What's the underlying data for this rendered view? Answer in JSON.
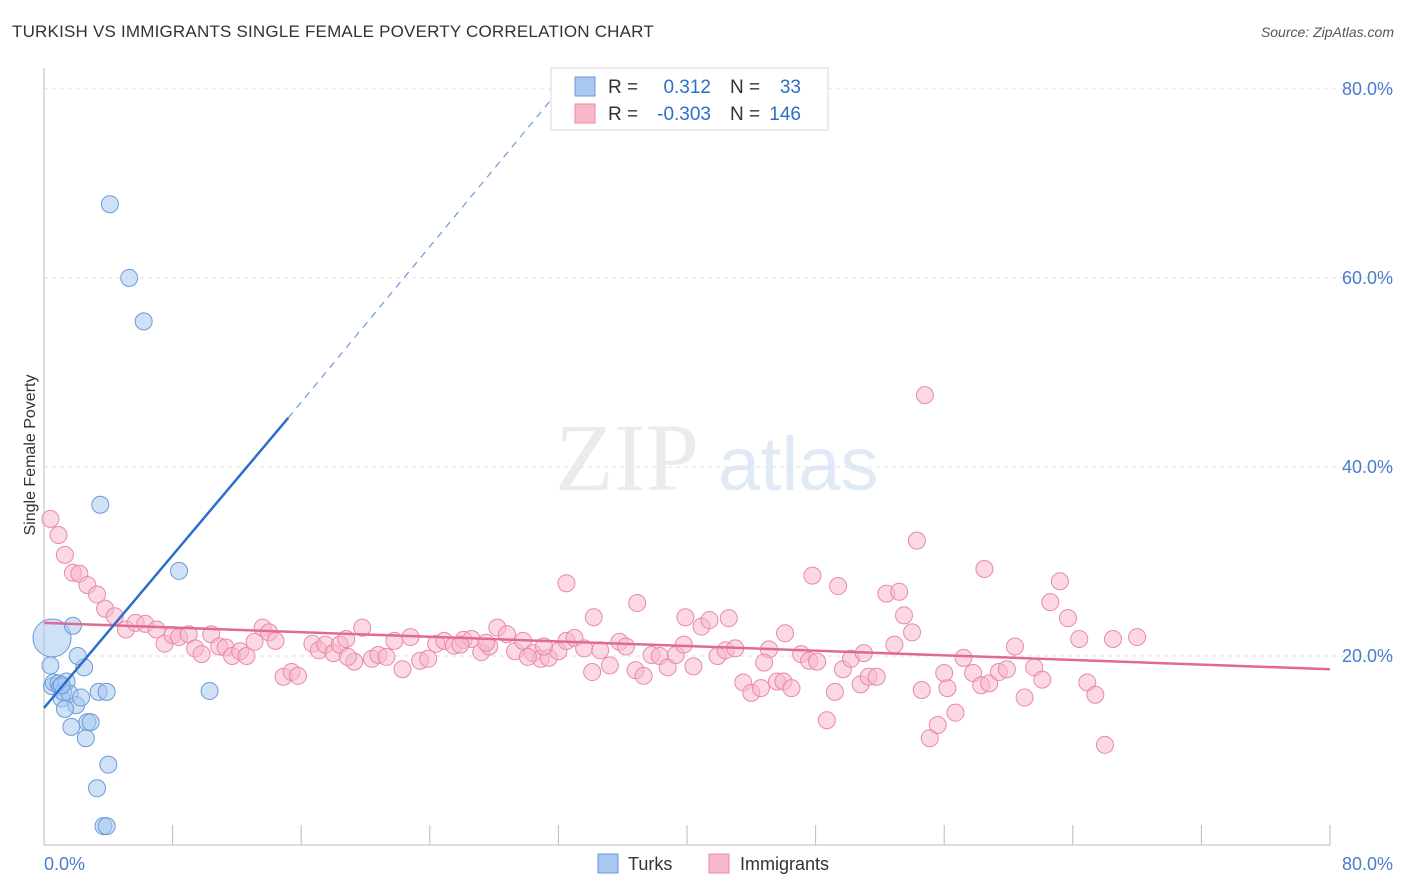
{
  "header": {
    "title": "TURKISH VS IMMIGRANTS SINGLE FEMALE POVERTY CORRELATION CHART",
    "source": "Source: ZipAtlas.com"
  },
  "watermark": {
    "zip": "ZIP",
    "atlas": "atlas"
  },
  "legend": {
    "turks": {
      "r_label": "R =",
      "r_value": "0.312",
      "n_label": "N =",
      "n_value": "33"
    },
    "immigrants": {
      "r_label": "R =",
      "r_value": "-0.303",
      "n_label": "N =",
      "n_value": "146"
    }
  },
  "bottom_legend": {
    "turks": "Turks",
    "immigrants": "Immigrants"
  },
  "colors": {
    "turks_fill": "#a8c8f0",
    "turks_stroke": "#6a9ad8",
    "turks_line": "#2b6fcc",
    "imm_fill": "#f7b8ca",
    "imm_stroke": "#e88aa6",
    "imm_line": "#e06a94",
    "axis_text": "#4a7ccc",
    "grid": "#e0e0e0"
  },
  "chart_data": {
    "type": "scatter",
    "title": "TURKISH VS IMMIGRANTS SINGLE FEMALE POVERTY CORRELATION CHART",
    "xlabel": "",
    "ylabel": "Single Female Poverty",
    "xlim": [
      0,
      80
    ],
    "ylim": [
      0,
      82
    ],
    "x_tick_labels": [
      "0.0%",
      "80.0%"
    ],
    "y_ticks": [
      20,
      40,
      60,
      80
    ],
    "y_tick_labels": [
      "20.0%",
      "40.0%",
      "60.0%",
      "80.0%"
    ],
    "grid": true,
    "legend_position": "top-center",
    "series": [
      {
        "name": "Turks",
        "r": 0.312,
        "n": 33,
        "trend": {
          "x0": 0,
          "y0": 14.5,
          "x1": 15.2,
          "y1": 45.2,
          "dashed_to_x": 32.1,
          "dashed_to_y": 80
        },
        "points": [
          [
            0.5,
            21.9
          ],
          [
            0.4,
            19
          ],
          [
            0.5,
            16.8
          ],
          [
            0.6,
            17.2
          ],
          [
            0.9,
            17.1
          ],
          [
            1.0,
            16.7
          ],
          [
            1.1,
            15.5
          ],
          [
            1.2,
            16.2
          ],
          [
            1.4,
            17.3
          ],
          [
            1.6,
            16
          ],
          [
            1.8,
            23.2
          ],
          [
            2.0,
            14.8
          ],
          [
            1.7,
            12.5
          ],
          [
            2.3,
            15.6
          ],
          [
            2.5,
            18.8
          ],
          [
            2.7,
            13
          ],
          [
            2.9,
            13
          ],
          [
            3.4,
            16.2
          ],
          [
            4.1,
            67.8
          ],
          [
            5.3,
            60
          ],
          [
            6.2,
            55.4
          ],
          [
            3.5,
            36
          ],
          [
            8.4,
            29
          ],
          [
            10.3,
            16.3
          ],
          [
            2.1,
            20
          ],
          [
            2.6,
            11.3
          ],
          [
            3.9,
            16.2
          ],
          [
            4.0,
            8.5
          ],
          [
            3.3,
            6
          ],
          [
            3.7,
            2
          ],
          [
            3.9,
            2
          ],
          [
            1.3,
            14.4
          ],
          [
            1.1,
            16.9
          ]
        ]
      },
      {
        "name": "Immigrants",
        "r": -0.303,
        "n": 146,
        "trend": {
          "x0": 0,
          "y0": 23.5,
          "x1": 80,
          "y1": 18.6
        },
        "points": [
          [
            0.4,
            34.5
          ],
          [
            0.9,
            32.8
          ],
          [
            1.3,
            30.7
          ],
          [
            1.8,
            28.8
          ],
          [
            2.2,
            28.7
          ],
          [
            2.7,
            27.5
          ],
          [
            3.3,
            26.5
          ],
          [
            3.8,
            25
          ],
          [
            4.4,
            24.2
          ],
          [
            5.1,
            22.8
          ],
          [
            5.7,
            23.5
          ],
          [
            6.3,
            23.4
          ],
          [
            7.0,
            22.8
          ],
          [
            7.5,
            21.3
          ],
          [
            8.0,
            22.2
          ],
          [
            8.4,
            22.0
          ],
          [
            9.0,
            22.3
          ],
          [
            9.4,
            20.8
          ],
          [
            9.8,
            20.2
          ],
          [
            10.4,
            22.3
          ],
          [
            10.9,
            21.0
          ],
          [
            11.3,
            20.9
          ],
          [
            11.7,
            20.0
          ],
          [
            12.2,
            20.5
          ],
          [
            12.6,
            20.0
          ],
          [
            13.1,
            21.5
          ],
          [
            13.6,
            23.0
          ],
          [
            14.0,
            22.5
          ],
          [
            14.4,
            21.6
          ],
          [
            14.9,
            17.8
          ],
          [
            15.4,
            18.3
          ],
          [
            15.8,
            17.9
          ],
          [
            16.7,
            21.3
          ],
          [
            17.1,
            20.6
          ],
          [
            17.5,
            21.2
          ],
          [
            18.0,
            20.3
          ],
          [
            18.4,
            21.2
          ],
          [
            18.8,
            21.8
          ],
          [
            19.3,
            19.4
          ],
          [
            19.8,
            23.0
          ],
          [
            20.4,
            19.7
          ],
          [
            20.8,
            20.1
          ],
          [
            21.3,
            19.9
          ],
          [
            21.8,
            21.6
          ],
          [
            22.3,
            18.6
          ],
          [
            22.8,
            22.0
          ],
          [
            23.4,
            19.5
          ],
          [
            23.9,
            19.7
          ],
          [
            24.4,
            21.3
          ],
          [
            24.9,
            21.6
          ],
          [
            25.5,
            21.1
          ],
          [
            26.1,
            21.7
          ],
          [
            26.6,
            21.8
          ],
          [
            27.2,
            20.4
          ],
          [
            27.7,
            21.0
          ],
          [
            28.2,
            23.0
          ],
          [
            28.8,
            22.3
          ],
          [
            29.3,
            20.5
          ],
          [
            29.8,
            21.6
          ],
          [
            30.4,
            20.3
          ],
          [
            30.9,
            19.7
          ],
          [
            31.4,
            19.8
          ],
          [
            32.0,
            20.5
          ],
          [
            32.5,
            21.6
          ],
          [
            33.0,
            21.9
          ],
          [
            33.6,
            20.8
          ],
          [
            34.1,
            18.3
          ],
          [
            34.6,
            20.6
          ],
          [
            35.2,
            19.0
          ],
          [
            35.8,
            21.5
          ],
          [
            36.2,
            21.0
          ],
          [
            36.8,
            18.5
          ],
          [
            37.3,
            17.9
          ],
          [
            37.8,
            20.1
          ],
          [
            38.3,
            20.0
          ],
          [
            38.8,
            18.8
          ],
          [
            39.3,
            20.1
          ],
          [
            39.8,
            21.2
          ],
          [
            40.4,
            18.9
          ],
          [
            40.9,
            23.1
          ],
          [
            41.4,
            23.8
          ],
          [
            41.9,
            20.0
          ],
          [
            42.4,
            20.6
          ],
          [
            43.0,
            20.8
          ],
          [
            43.5,
            17.2
          ],
          [
            44.0,
            16.1
          ],
          [
            44.6,
            16.6
          ],
          [
            45.1,
            20.7
          ],
          [
            45.6,
            17.3
          ],
          [
            46.0,
            17.3
          ],
          [
            46.5,
            16.6
          ],
          [
            47.1,
            20.2
          ],
          [
            47.6,
            19.5
          ],
          [
            48.1,
            19.4
          ],
          [
            48.7,
            13.2
          ],
          [
            49.2,
            16.2
          ],
          [
            49.7,
            18.6
          ],
          [
            50.2,
            19.7
          ],
          [
            50.8,
            17.0
          ],
          [
            51.3,
            17.8
          ],
          [
            51.8,
            17.8
          ],
          [
            52.4,
            26.6
          ],
          [
            52.9,
            21.2
          ],
          [
            53.5,
            24.3
          ],
          [
            54.0,
            22.5
          ],
          [
            54.6,
            16.4
          ],
          [
            55.1,
            11.3
          ],
          [
            55.6,
            12.7
          ],
          [
            56.2,
            16.6
          ],
          [
            56.7,
            14.0
          ],
          [
            57.2,
            19.8
          ],
          [
            57.8,
            18.2
          ],
          [
            58.3,
            16.9
          ],
          [
            58.8,
            17.1
          ],
          [
            59.4,
            18.3
          ],
          [
            59.9,
            18.6
          ],
          [
            60.4,
            21.0
          ],
          [
            61.0,
            15.6
          ],
          [
            61.6,
            18.8
          ],
          [
            62.1,
            17.5
          ],
          [
            62.6,
            25.7
          ],
          [
            63.2,
            27.9
          ],
          [
            63.7,
            24.0
          ],
          [
            64.4,
            21.8
          ],
          [
            64.9,
            17.2
          ],
          [
            65.4,
            15.9
          ],
          [
            66.0,
            10.6
          ],
          [
            54.8,
            47.6
          ],
          [
            54.3,
            32.2
          ],
          [
            53.2,
            26.8
          ],
          [
            47.8,
            28.5
          ],
          [
            49.4,
            27.4
          ],
          [
            32.5,
            27.7
          ],
          [
            36.9,
            25.6
          ],
          [
            34.2,
            24.1
          ],
          [
            39.9,
            24.1
          ],
          [
            42.6,
            24.0
          ],
          [
            58.5,
            29.2
          ],
          [
            46.1,
            22.4
          ],
          [
            30.1,
            19.9
          ],
          [
            56.0,
            18.2
          ],
          [
            66.5,
            21.8
          ],
          [
            68.0,
            22.0
          ],
          [
            51.0,
            20.3
          ],
          [
            44.8,
            19.3
          ],
          [
            27.5,
            21.4
          ],
          [
            31.1,
            21.0
          ],
          [
            25.9,
            21.2
          ],
          [
            18.9,
            19.9
          ]
        ]
      }
    ]
  }
}
